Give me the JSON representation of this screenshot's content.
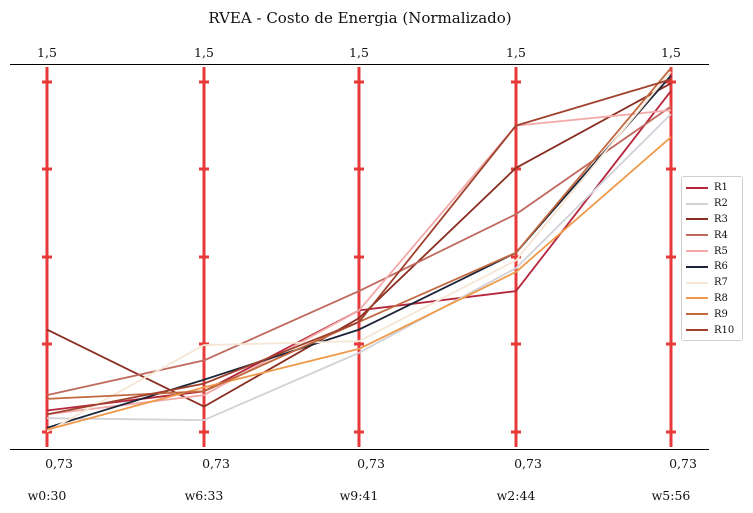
{
  "chart_data": {
    "type": "line",
    "title": "RVEA - Costo de Energia (Normalizado)",
    "categories": [
      "w0:30",
      "w6:33",
      "w9:41",
      "w2:44",
      "w5:56"
    ],
    "axis_top_labels": [
      "1,5",
      "1,5",
      "1,5",
      "1,5",
      "1,5"
    ],
    "axis_bottom_labels": [
      "0,73",
      "0,73",
      "0,73",
      "0,73",
      "0,73"
    ],
    "ylim": [
      0,
      1
    ],
    "grid": false,
    "legend_position": "center-right",
    "axis_color": "#e8393a",
    "series": [
      {
        "name": "R1",
        "color": "#b5253b",
        "values": [
          0.1,
          0.15,
          0.36,
          0.41,
          0.93
        ]
      },
      {
        "name": "R2",
        "color": "#d1d1d8",
        "values": [
          0.08,
          0.075,
          0.25,
          0.47,
          0.87
        ]
      },
      {
        "name": "R3",
        "color": "#8b2e22",
        "values": [
          0.31,
          0.11,
          0.34,
          0.73,
          0.95
        ]
      },
      {
        "name": "R4",
        "color": "#c06a5e",
        "values": [
          0.14,
          0.23,
          0.41,
          0.61,
          0.89
        ]
      },
      {
        "name": "R5",
        "color": "#f2aaa8",
        "values": [
          0.09,
          0.14,
          0.36,
          0.84,
          0.88
        ]
      },
      {
        "name": "R6",
        "color": "#1c2438",
        "values": [
          0.055,
          0.18,
          0.31,
          0.51,
          0.97
        ]
      },
      {
        "name": "R7",
        "color": "#f6e6d5",
        "values": [
          0.045,
          0.27,
          0.28,
          0.49,
          0.98
        ]
      },
      {
        "name": "R8",
        "color": "#ee9a4a",
        "values": [
          0.05,
          0.16,
          0.26,
          0.46,
          0.81
        ]
      },
      {
        "name": "R9",
        "color": "#c1683f",
        "values": [
          0.13,
          0.15,
          0.33,
          0.51,
          0.99
        ]
      },
      {
        "name": "R10",
        "color": "#a0402d",
        "values": [
          0.09,
          0.17,
          0.33,
          0.84,
          0.96
        ]
      }
    ]
  }
}
